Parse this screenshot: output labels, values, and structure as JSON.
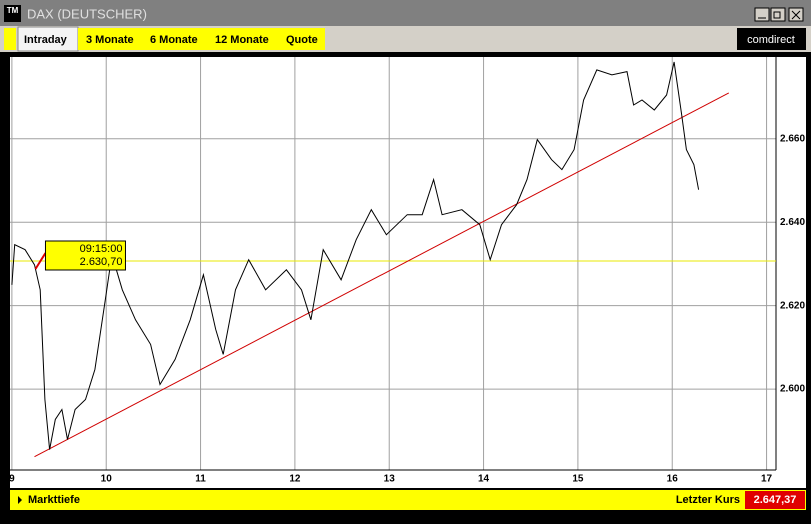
{
  "window": {
    "title": "DAX (DEUTSCHER)",
    "icon": "TM"
  },
  "tabs": [
    "Intraday",
    "3 Monate",
    "6 Monate",
    "12 Monate",
    "Quote"
  ],
  "brand": "comdirect",
  "chart_data": {
    "type": "line",
    "x": [
      9.0,
      9.03,
      9.14,
      9.24,
      9.3,
      9.35,
      9.4,
      9.46,
      9.53,
      9.59,
      9.67,
      9.78,
      9.88,
      9.99,
      10.06,
      10.17,
      10.31,
      10.47,
      10.57,
      10.73,
      10.89,
      11.03,
      11.16,
      11.24,
      11.37,
      11.51,
      11.69,
      11.91,
      12.07,
      12.17,
      12.3,
      12.49,
      12.65,
      12.81,
      12.97,
      13.19,
      13.35,
      13.47,
      13.56,
      13.77,
      13.96,
      14.07,
      14.19,
      14.35,
      14.46,
      14.57,
      14.72,
      14.83,
      14.96,
      15.06,
      15.2,
      15.36,
      15.52,
      15.59,
      15.68,
      15.81,
      15.94,
      16.02,
      16.1,
      16.15,
      16.23,
      16.28
    ],
    "series": [
      {
        "color": "#000000",
        "values": [
          2625.0,
          2634.6,
          2633.4,
          2629.8,
          2623.8,
          2597.5,
          2585.5,
          2592.7,
          2595.1,
          2587.9,
          2595.1,
          2597.5,
          2604.7,
          2621.4,
          2632.2,
          2623.8,
          2616.6,
          2610.7,
          2601.1,
          2607.1,
          2616.6,
          2627.4,
          2614.3,
          2608.3,
          2623.8,
          2631.0,
          2623.8,
          2628.6,
          2623.8,
          2616.6,
          2633.4,
          2626.2,
          2635.8,
          2643.0,
          2637.0,
          2641.8,
          2641.8,
          2650.2,
          2641.8,
          2643.0,
          2639.4,
          2631.0,
          2639.4,
          2644.2,
          2650.2,
          2659.8,
          2655.0,
          2652.6,
          2657.4,
          2669.3,
          2676.5,
          2675.3,
          2676.1,
          2668.1,
          2669.3,
          2666.9,
          2670.5,
          2678.4,
          2665.7,
          2657.4,
          2653.8,
          2647.8
        ]
      }
    ],
    "trend_line": {
      "color": "#d00000",
      "x": [
        9.24,
        16.6
      ],
      "values": [
        2583.8,
        2671.0
      ]
    },
    "cursor": {
      "time": "09:15:00",
      "x": 9.25,
      "value": 2630.7,
      "value_label": "2.630,70",
      "color": "#e8e800"
    },
    "xlim": [
      8.98,
      17.1
    ],
    "xticks": [
      9,
      10,
      11,
      12,
      13,
      14,
      15,
      16,
      17
    ],
    "ylim": [
      2580.6,
      2679.6
    ],
    "yticks": [
      {
        "value": 2600,
        "label": "2.600"
      },
      {
        "value": 2620,
        "label": "2.620"
      },
      {
        "value": 2640,
        "label": "2.640"
      },
      {
        "value": 2660,
        "label": "2.660"
      }
    ],
    "grid": true
  },
  "footer": {
    "depth": "Markttiefe",
    "last_label": "Letzter Kurs",
    "last_value": "2.647,37"
  }
}
